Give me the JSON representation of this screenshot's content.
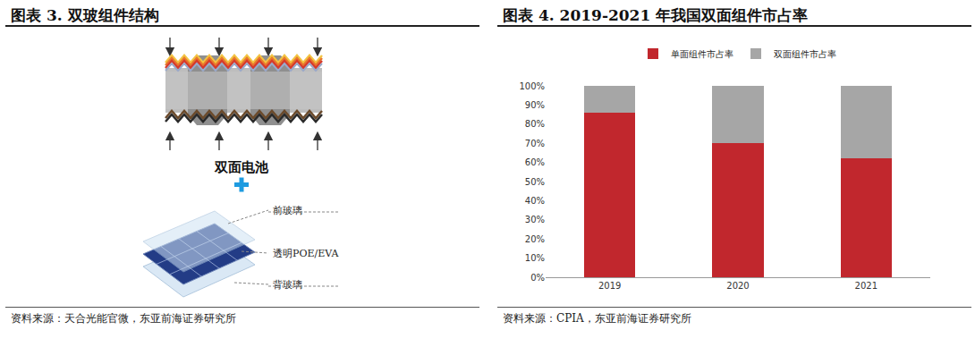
{
  "left": {
    "header": "图表 3.  双玻组件结构",
    "cell_label": "双面电池",
    "front_label": "前玻璃",
    "film_label": "透明POE/EVA",
    "back_label": "背玻璃",
    "source": "资料来源：天合光能官微，东亚前海证券研究所"
  },
  "right": {
    "header": "图表 4.  2019-2021 年我国双面组件市占率",
    "source": "资料来源：CPIA，东亚前海证券研究所"
  },
  "chart_data": {
    "type": "bar",
    "stacked": true,
    "categories": [
      "2019",
      "2020",
      "2021"
    ],
    "series": [
      {
        "name": "单面组件市占率",
        "color": "#c1272d",
        "values": [
          86,
          70,
          62
        ]
      },
      {
        "name": "双面组件市占率",
        "color": "#a6a6a6",
        "values": [
          14,
          30,
          38
        ]
      }
    ],
    "ylim": [
      0,
      100
    ],
    "yticks": [
      {
        "value": 0,
        "label": "0%"
      },
      {
        "value": 10,
        "label": "10%"
      },
      {
        "value": 20,
        "label": "20%"
      },
      {
        "value": 30,
        "label": "30%"
      },
      {
        "value": 40,
        "label": "40%"
      },
      {
        "value": 50,
        "label": "50%"
      },
      {
        "value": 60,
        "label": "60%"
      },
      {
        "value": 70,
        "label": "70%"
      },
      {
        "value": 80,
        "label": "80%"
      },
      {
        "value": 90,
        "label": "90%"
      },
      {
        "value": 100,
        "label": "100%"
      }
    ],
    "grid": false,
    "legend": "top"
  }
}
